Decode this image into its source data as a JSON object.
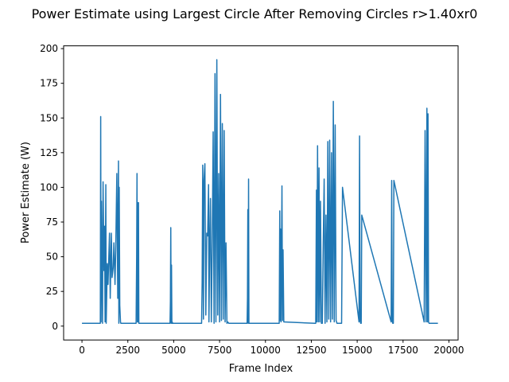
{
  "chart_data": {
    "type": "line",
    "title": "Power Estimate using Largest Circle After Removing Circles r>1.40xr0",
    "xlabel": "Frame Index",
    "ylabel": "Power Estimate (W)",
    "xlim": [
      -1000,
      20500
    ],
    "ylim": [
      -10,
      202
    ],
    "xticks": [
      0,
      2500,
      5000,
      7500,
      10000,
      12500,
      15000,
      17500,
      20000
    ],
    "yticks": [
      0,
      25,
      50,
      75,
      100,
      125,
      150,
      175,
      200
    ],
    "xtick_labels": [
      "0",
      "2500",
      "5000",
      "7500",
      "10000",
      "12500",
      "15000",
      "17500",
      "20000"
    ],
    "ytick_labels": [
      "0",
      "25",
      "50",
      "75",
      "100",
      "125",
      "150",
      "175",
      "200"
    ],
    "grid": false,
    "line_color": "#1f77b4",
    "series": [
      {
        "x": [
          0,
          1000,
          1020,
          1040,
          1060,
          1120,
          1150,
          1200,
          1230,
          1260,
          1300,
          1320,
          1380,
          1420,
          1500,
          1540,
          1600,
          1640,
          1700,
          1740,
          1800,
          1840,
          1900,
          1950,
          1990,
          2010,
          2030,
          2060,
          2100,
          2120,
          2200,
          2950,
          2980,
          3000,
          3020,
          3040,
          3060,
          3080,
          3100,
          3120,
          4800,
          4820,
          4840,
          4860,
          4880,
          4900,
          4920,
          4940,
          4960,
          6520,
          6550,
          6580,
          6620,
          6650,
          6700,
          6750,
          6800,
          6850,
          6900,
          6920,
          6960,
          7000,
          7050,
          7100,
          7150,
          7200,
          7250,
          7300,
          7350,
          7400,
          7450,
          7500,
          7550,
          7600,
          7650,
          7700,
          7750,
          7800,
          7850,
          7900,
          7950,
          8000,
          8050,
          8100,
          9000,
          9020,
          9040,
          9060,
          9080,
          9100,
          9120,
          10750,
          10780,
          10800,
          10820,
          10850,
          10900,
          10930,
          10960,
          11000,
          12700,
          12740,
          12780,
          12800,
          12840,
          12880,
          12920,
          12960,
          13000,
          13050,
          13100,
          13150,
          13200,
          13250,
          13300,
          13350,
          13400,
          13450,
          13500,
          13550,
          13600,
          13650,
          13700,
          13750,
          13800,
          13850,
          13900,
          13950,
          14000,
          14050,
          14100,
          14150,
          14200,
          15100,
          15130,
          15160,
          15190,
          15220,
          15250,
          16850,
          16880,
          16910,
          16940,
          16970,
          17000,
          18650,
          18700,
          18750,
          18800,
          18830,
          18860,
          18890,
          18920,
          18950,
          18980,
          19000,
          19400
        ],
        "y": [
          2,
          2,
          151,
          3,
          90,
          2,
          104,
          40,
          72,
          3,
          102,
          2,
          45,
          30,
          67,
          20,
          67,
          35,
          42,
          60,
          30,
          55,
          110,
          20,
          119,
          2,
          100,
          15,
          3,
          2,
          2,
          2,
          50,
          110,
          3,
          89,
          3,
          89,
          2,
          2,
          2,
          18,
          71,
          2,
          44,
          2,
          3,
          2,
          2,
          2,
          32,
          116,
          5,
          105,
          117,
          8,
          67,
          65,
          102,
          3,
          60,
          92,
          3,
          60,
          140,
          2,
          182,
          3,
          192,
          8,
          110,
          3,
          167,
          4,
          146,
          5,
          141,
          3,
          60,
          2,
          3,
          2,
          2,
          2,
          2,
          20,
          84,
          2,
          106,
          2,
          2,
          2,
          83,
          4,
          70,
          3,
          101,
          4,
          55,
          3,
          2,
          2,
          98,
          3,
          130,
          3,
          114,
          3,
          90,
          2,
          2,
          60,
          106,
          2,
          80,
          3,
          133,
          5,
          134,
          3,
          125,
          5,
          162,
          3,
          145,
          4,
          2,
          2,
          2,
          2,
          2,
          2,
          100,
          3,
          137,
          4,
          2,
          2,
          80,
          3,
          105,
          4,
          2,
          2,
          105,
          3,
          141,
          3,
          157,
          3,
          153,
          3,
          2,
          2,
          2,
          2,
          2
        ]
      }
    ]
  }
}
